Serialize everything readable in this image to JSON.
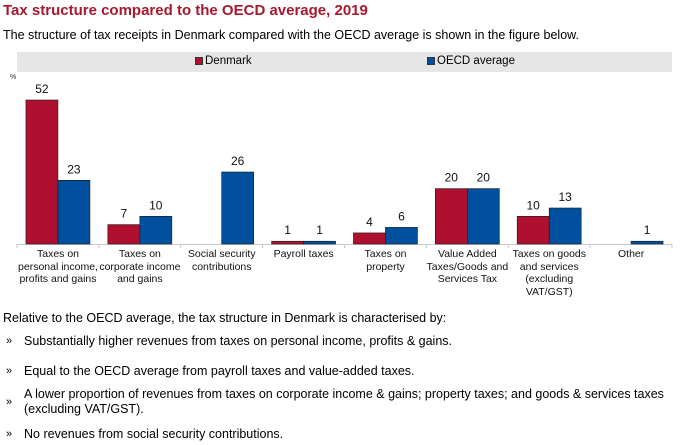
{
  "header": {
    "title": "Tax structure compared to the OECD average, 2019",
    "subtitle": "The structure of tax receipts in Denmark compared with the OECD average is shown in the figure below."
  },
  "chart_data": {
    "type": "bar",
    "title": "Tax structure compared to the OECD average, 2019",
    "xlabel": "",
    "ylabel": "%",
    "ylim": [
      0,
      52
    ],
    "grid": false,
    "legend_position": "top",
    "categories": [
      "Taxes on personal income, profits and gains",
      "Taxes on corporate income and gains",
      "Social security contributions",
      "Payroll taxes",
      "Taxes on property",
      "Value Added Taxes/Goods and Services Tax",
      "Taxes on goods and services (excluding VAT/GST)",
      "Other"
    ],
    "series": [
      {
        "name": "Denmark",
        "color": "#b0102f",
        "values": [
          52,
          7,
          0,
          1,
          4,
          20,
          10,
          0
        ],
        "labels": [
          "52",
          "7",
          "",
          "1",
          "4",
          "20",
          "10",
          ""
        ]
      },
      {
        "name": "OECD average",
        "color": "#00509e",
        "values": [
          23,
          10,
          26,
          1,
          6,
          20,
          13,
          1
        ],
        "labels": [
          "23",
          "10",
          "26",
          "1",
          "6",
          "20",
          "13",
          "1"
        ]
      }
    ]
  },
  "legend": {
    "denmark": "Denmark",
    "oecd": "OECD average",
    "denmark_color": "#b0102f",
    "oecd_color": "#00509e"
  },
  "axis": {
    "unit": "%"
  },
  "summary": {
    "intro": "Relative to the OECD average, the tax structure in Denmark is characterised by:",
    "bullet_glyph": "»",
    "bullets": [
      "Substantially higher revenues from taxes on personal income, profits & gains.",
      "Equal to the OECD average from payroll taxes and value-added taxes.",
      "A lower proportion of revenues from taxes on corporate income & gains; property taxes; and goods & services taxes (excluding VAT/GST).",
      "No revenues from social security contributions."
    ]
  }
}
